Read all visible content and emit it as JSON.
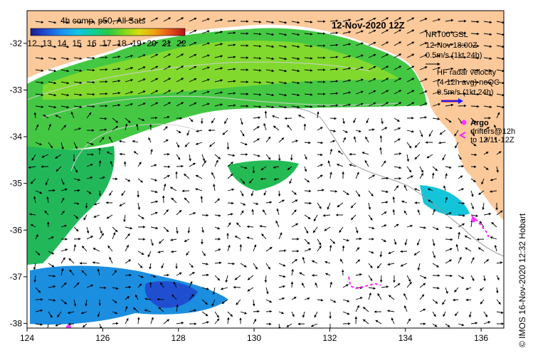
{
  "title": "12-Nov-2020 12Z",
  "colorbar": {
    "label": "4h comp, p50, All Sats",
    "ticks": [
      "12",
      "13",
      "14",
      "15",
      "16",
      "17",
      "18",
      "19",
      "20",
      "21",
      "22"
    ],
    "range": [
      12,
      22
    ]
  },
  "axes": {
    "x_ticks": [
      124,
      126,
      128,
      130,
      132,
      134,
      136
    ],
    "y_ticks": [
      -32,
      -33,
      -34,
      -35,
      -36,
      -37,
      -38
    ],
    "x_range": [
      124,
      136.6
    ],
    "y_range": [
      -38.1,
      -31.3
    ],
    "x_tick_labels": [
      "124",
      "126",
      "128",
      "130",
      "132",
      "134",
      "136"
    ],
    "y_tick_labels": [
      "-32",
      "-33",
      "-34",
      "-35",
      "-36",
      "-37",
      "-38"
    ]
  },
  "legend": {
    "model_lines": [
      "NRT00 GSL",
      "12-Nov 18:00Z",
      "0.5m/s (1kt 24h)"
    ],
    "radar_lines": [
      "HF radar velocity",
      "(4-12h avg) noQC",
      "0.5m/s (1kt 24h)"
    ],
    "argo_label": "Argo",
    "drifter_lines": [
      "drifters@12h",
      "to 13/11-12Z"
    ]
  },
  "credit": "© IMOS 16-Nov-2020 12:32 Hobart",
  "colors": {
    "land": "#fbc99a",
    "background": "#ffffff",
    "argo": "#ff33ff",
    "drifter": "#ff22ff",
    "radar_arrow": "#1a1aff",
    "radar_arrow_outline": "#ff0000",
    "contour": "#cfcfcf",
    "bathy": "#9a9a9a"
  },
  "argo_floats": [
    {
      "lon": 125.1,
      "lat": -38.08
    },
    {
      "lon": 135.8,
      "lat": -35.78
    }
  ],
  "drifter_tracks": [
    [
      [
        132.5,
        -37.0
      ],
      [
        132.55,
        -37.2
      ],
      [
        132.7,
        -37.25
      ],
      [
        132.95,
        -37.2
      ],
      [
        133.2,
        -37.15
      ],
      [
        133.35,
        -37.18
      ]
    ],
    [
      [
        135.75,
        -35.7
      ],
      [
        135.9,
        -35.8
      ],
      [
        136.05,
        -35.95
      ],
      [
        136.15,
        -36.05
      ],
      [
        136.2,
        -36.15
      ]
    ]
  ]
}
